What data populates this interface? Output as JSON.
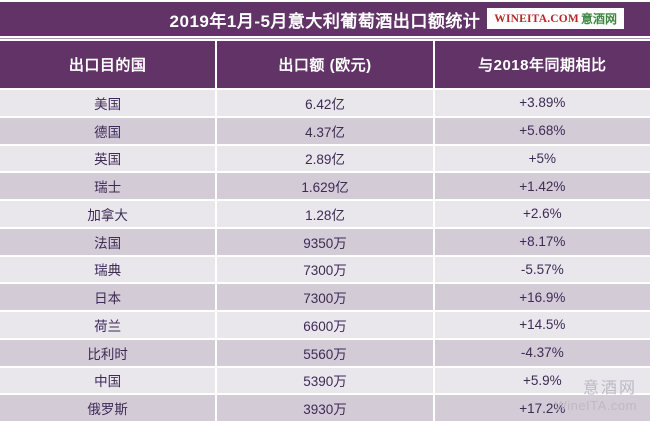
{
  "logo": {
    "text_latin": "WINEITA.COM",
    "text_cn": "意酒网"
  },
  "watermark": {
    "line1": "意酒网",
    "line2": "WineITA.com"
  },
  "colors": {
    "header_purple": "#613367",
    "row_light": "#e9e7ec",
    "row_dark": "#d3ccd7",
    "cell_text": "#3d2a56",
    "logo_red": "#b5282e",
    "logo_green": "#3f8742",
    "watermark_gray": "#bfb9c3"
  },
  "chart_data": {
    "type": "table",
    "title": "2019年1月-5月意大利葡萄酒出口额统计",
    "columns": [
      "出口目的国",
      "出口额 (欧元)",
      "与2018年同期相比"
    ],
    "rows": [
      [
        "美国",
        "6.42亿",
        "+3.89%"
      ],
      [
        "德国",
        "4.37亿",
        "+5.68%"
      ],
      [
        "英国",
        "2.89亿",
        "+5%"
      ],
      [
        "瑞士",
        "1.629亿",
        "+1.42%"
      ],
      [
        "加拿大",
        "1.28亿",
        "+2.6%"
      ],
      [
        "法国",
        "9350万",
        "+8.17%"
      ],
      [
        "瑞典",
        "7300万",
        "-5.57%"
      ],
      [
        "日本",
        "7300万",
        "+16.9%"
      ],
      [
        "荷兰",
        "6600万",
        "+14.5%"
      ],
      [
        "比利时",
        "5560万",
        "-4.37%"
      ],
      [
        "中国",
        "5390万",
        "+5.9%"
      ],
      [
        "俄罗斯",
        "3930万",
        "+17.2%"
      ]
    ]
  }
}
